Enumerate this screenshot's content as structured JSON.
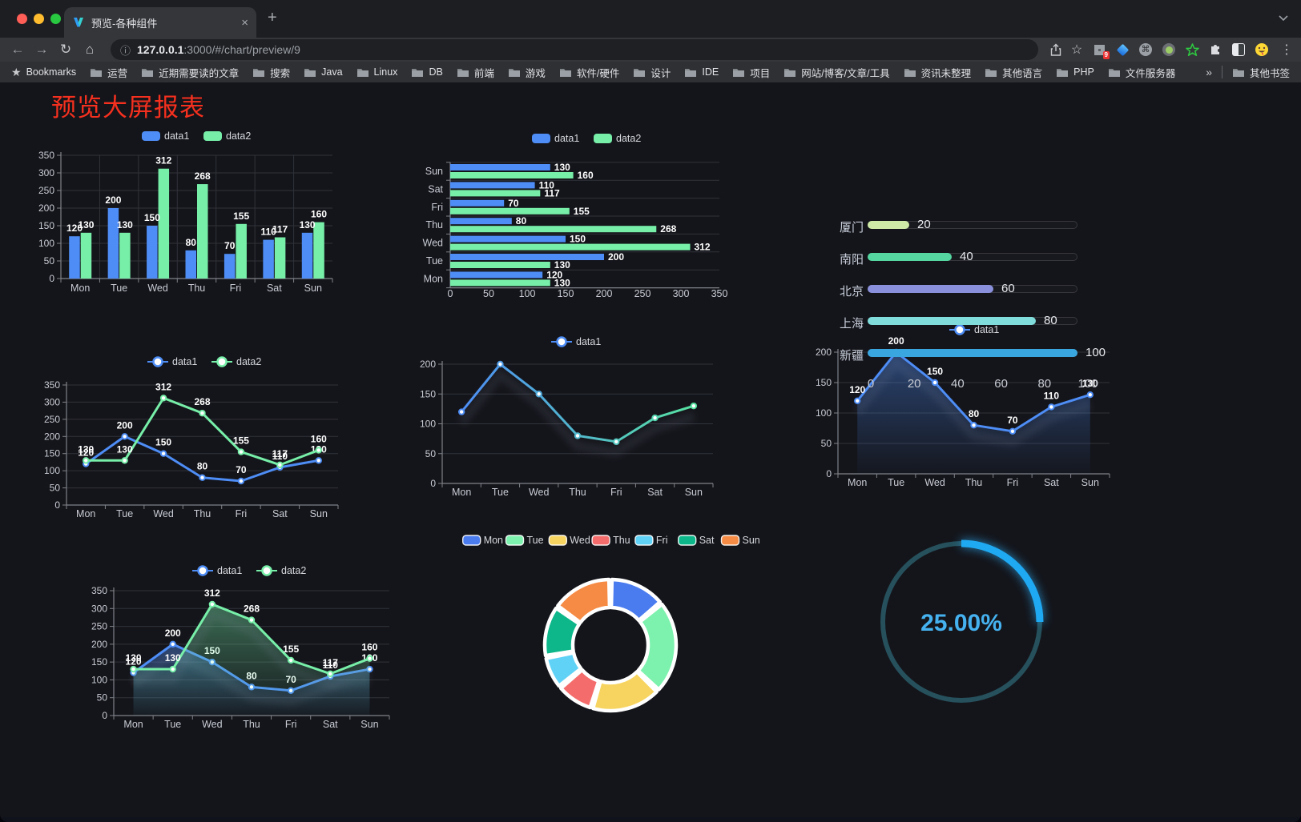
{
  "browser": {
    "traffic_lights": [
      "close",
      "minimize",
      "fullscreen"
    ],
    "tab": {
      "title": "预览-各种组件",
      "favicon": "v-logo-icon",
      "close_icon": "×",
      "new_tab_icon": "+"
    },
    "toolbar": {
      "back_icon": "←",
      "forward_icon": "→",
      "reload_icon": "↻",
      "home_icon": "⌂",
      "info_icon": "ⓘ",
      "url": {
        "host": "127.0.0.1",
        "rest": ":3000/#/chart/preview/9"
      },
      "share_icon": "share-icon",
      "star_icon": "☆",
      "extension_icons": [
        "extensions-grid-badge",
        "blue-gem",
        "command-circle",
        "green-dot",
        "green-star",
        "puzzle",
        "reader-split",
        "emoji-face"
      ],
      "extension_badge": "9",
      "menu_icon": "⋮"
    },
    "bookmarks": {
      "star_label": "Bookmarks",
      "folders": [
        "运营",
        "近期需要读的文章",
        "搜索",
        "Java",
        "Linux",
        "DB",
        "前端",
        "游戏",
        "软件/硬件",
        "设计",
        "IDE",
        "项目",
        "网站/博客/文章/工具",
        "资讯未整理",
        "其他语言",
        "PHP",
        "文件服务器"
      ],
      "overflow": "»",
      "other_bookmarks": "其他书签"
    }
  },
  "page": {
    "title": "预览大屏报表",
    "title_color": "#f6301e"
  },
  "chart_data": [
    {
      "id": "bar-grouped",
      "type": "bar",
      "categories": [
        "Mon",
        "Tue",
        "Wed",
        "Thu",
        "Fri",
        "Sat",
        "Sun"
      ],
      "series": [
        {
          "name": "data1",
          "color": "#4d8df5",
          "values": [
            120,
            200,
            150,
            80,
            70,
            110,
            130
          ]
        },
        {
          "name": "data2",
          "color": "#77efa9",
          "values": [
            130,
            130,
            312,
            268,
            155,
            117,
            160
          ]
        }
      ],
      "ylim": [
        0,
        350
      ],
      "y_step": 50,
      "value_labels": true,
      "legend_position": "top"
    },
    {
      "id": "bar-horizontal",
      "type": "bar-horizontal",
      "categories_top_to_bottom": [
        "Sun",
        "Sat",
        "Fri",
        "Thu",
        "Wed",
        "Tue",
        "Mon"
      ],
      "series": [
        {
          "name": "data1",
          "color": "#4d8df5",
          "values": [
            130,
            110,
            70,
            80,
            150,
            200,
            120
          ]
        },
        {
          "name": "data2",
          "color": "#77efa9",
          "values": [
            160,
            117,
            155,
            268,
            312,
            130,
            130
          ]
        }
      ],
      "xlim": [
        0,
        350
      ],
      "x_step": 50,
      "value_labels": true,
      "legend_position": "top"
    },
    {
      "id": "progress-bars",
      "type": "progress",
      "items": [
        {
          "label": "厦门",
          "value": 20,
          "color": "#cfe9a6"
        },
        {
          "label": "南阳",
          "value": 40,
          "color": "#55d6a0"
        },
        {
          "label": "北京",
          "value": 60,
          "color": "#8a90db"
        },
        {
          "label": "上海",
          "value": 80,
          "color": "#7fdcda"
        },
        {
          "label": "新疆",
          "value": 100,
          "color": "#3aa6e0"
        }
      ],
      "axis_ticks": [
        0,
        20,
        40,
        60,
        80,
        100
      ],
      "xlim": [
        0,
        100
      ]
    },
    {
      "id": "line-dual",
      "type": "line",
      "categories": [
        "Mon",
        "Tue",
        "Wed",
        "Thu",
        "Fri",
        "Sat",
        "Sun"
      ],
      "series": [
        {
          "name": "data1",
          "color": "#4d8df5",
          "values": [
            120,
            200,
            150,
            80,
            70,
            110,
            130
          ]
        },
        {
          "name": "data2",
          "color": "#77efa9",
          "values": [
            130,
            130,
            312,
            268,
            155,
            117,
            160
          ]
        }
      ],
      "ylim": [
        0,
        350
      ],
      "y_step": 50,
      "value_labels": true
    },
    {
      "id": "line-gradient",
      "type": "line",
      "categories": [
        "Mon",
        "Tue",
        "Wed",
        "Thu",
        "Fri",
        "Sat",
        "Sun"
      ],
      "series": [
        {
          "name": "data1",
          "color": "#4d8df5",
          "gradient": [
            "#4d8df5",
            "#57e2a2"
          ],
          "values": [
            120,
            200,
            150,
            80,
            70,
            110,
            130
          ]
        }
      ],
      "ylim": [
        0,
        200
      ],
      "y_step": 50,
      "value_labels": false,
      "shadow": true
    },
    {
      "id": "line-area",
      "type": "line",
      "categories": [
        "Mon",
        "Tue",
        "Wed",
        "Thu",
        "Fri",
        "Sat",
        "Sun"
      ],
      "series": [
        {
          "name": "data1",
          "color": "#4d8df5",
          "area": true,
          "values": [
            120,
            200,
            150,
            80,
            70,
            110,
            130
          ]
        }
      ],
      "ylim": [
        0,
        200
      ],
      "y_step": 50,
      "value_labels": true,
      "shadow": true
    },
    {
      "id": "line-dual-area",
      "type": "line",
      "categories": [
        "Mon",
        "Tue",
        "Wed",
        "Thu",
        "Fri",
        "Sat",
        "Sun"
      ],
      "series": [
        {
          "name": "data1",
          "color": "#4d8df5",
          "area": true,
          "values": [
            120,
            200,
            150,
            80,
            70,
            110,
            130
          ]
        },
        {
          "name": "data2",
          "color": "#77efa9",
          "area": true,
          "values": [
            130,
            130,
            312,
            268,
            155,
            117,
            160
          ]
        }
      ],
      "ylim": [
        0,
        350
      ],
      "y_step": 50,
      "value_labels": true,
      "shadow": true
    },
    {
      "id": "donut",
      "type": "pie",
      "items": [
        {
          "label": "Mon",
          "value": 120,
          "color": "#4a7cf0"
        },
        {
          "label": "Tue",
          "value": 200,
          "color": "#7df2ae"
        },
        {
          "label": "Wed",
          "value": 150,
          "color": "#f6d45f"
        },
        {
          "label": "Thu",
          "value": 80,
          "color": "#f56c6c"
        },
        {
          "label": "Fri",
          "value": 70,
          "color": "#5fd2f5"
        },
        {
          "label": "Sat",
          "value": 110,
          "color": "#0db789"
        },
        {
          "label": "Sun",
          "value": 130,
          "color": "#f58b44"
        }
      ],
      "inner_radius_ratio": 0.57,
      "border_color": "#ffffff"
    },
    {
      "id": "gauge",
      "type": "gauge",
      "percent": 25,
      "label": "25.00%",
      "arc_color": "#1fa9f2",
      "track_color": "#25505c",
      "text_color": "#45b1ef"
    }
  ],
  "theme": {
    "background": "#14151b",
    "grid_color": "#30333a",
    "axis_color": "#7f8289",
    "tick_text": "#c9ccd4",
    "label_text": "#ffffff",
    "series_blue": "#4d8df5",
    "series_green": "#77efa9"
  }
}
